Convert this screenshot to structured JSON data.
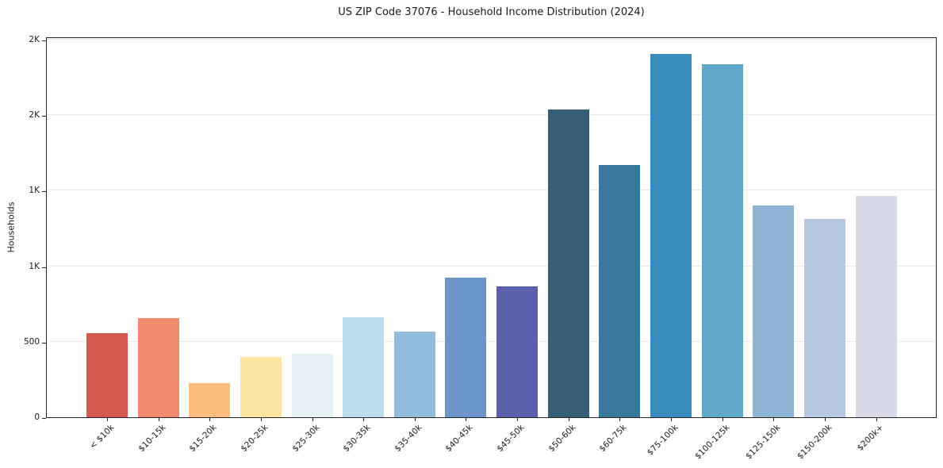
{
  "chart_data": {
    "type": "bar",
    "title": "US ZIP Code 37076 - Household Income Distribution (2024)",
    "xlabel": "",
    "ylabel": "Households",
    "categories": [
      "< $10k",
      "$10-15k",
      "$15-20k",
      "$20-25k",
      "$25-30k",
      "$30-35k",
      "$35-40k",
      "$40-45k",
      "$45-50k",
      "$50-60k",
      "$60-75k",
      "$75-100k",
      "$100-125k",
      "$125-150k",
      "$150-200k",
      "$200k+"
    ],
    "values": [
      555,
      655,
      225,
      400,
      420,
      660,
      565,
      925,
      865,
      2035,
      1670,
      2405,
      2335,
      1400,
      1310,
      1465
    ],
    "bar_colors": [
      "#d6584f",
      "#f18b6e",
      "#fcbd7e",
      "#fde5a3",
      "#e6f2f8",
      "#bcdeec",
      "#92bcdb",
      "#6c95c9",
      "#5b60ad",
      "#365e74",
      "#38789c",
      "#398dbe",
      "#60a8ca",
      "#8fb5d6",
      "#b6c8e0",
      "#d8dae8"
    ],
    "ylim": [
      0,
      2520
    ],
    "yticks": [
      0,
      500,
      1000,
      1500,
      2000,
      2500
    ],
    "ytick_labels": [
      "0",
      "500",
      "1K",
      "1K",
      "2K",
      "2K"
    ],
    "grid": "horizontal",
    "legend": "none",
    "colors": {
      "background": "#ffffff",
      "spine": "#262626",
      "gridline": "#e8e8ee",
      "text": "#1a1a1a"
    }
  }
}
